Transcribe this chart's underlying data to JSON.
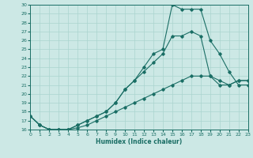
{
  "xlabel": "Humidex (Indice chaleur)",
  "background_color": "#cce8e5",
  "line_color": "#1a6e65",
  "grid_color": "#aad4cf",
  "xlim": [
    0,
    23
  ],
  "ylim": [
    16,
    30
  ],
  "xticks": [
    0,
    1,
    2,
    3,
    4,
    5,
    6,
    7,
    8,
    9,
    10,
    11,
    12,
    13,
    14,
    15,
    16,
    17,
    18,
    19,
    20,
    21,
    22,
    23
  ],
  "yticks": [
    16,
    17,
    18,
    19,
    20,
    21,
    22,
    23,
    24,
    25,
    26,
    27,
    28,
    29,
    30
  ],
  "line1_x": [
    0,
    1,
    2,
    3,
    4,
    5,
    6,
    7,
    8,
    9,
    10,
    11,
    12,
    13,
    14,
    15,
    16,
    17,
    18,
    19,
    20,
    21,
    22,
    23
  ],
  "line1_y": [
    17.5,
    16.5,
    16.0,
    16.0,
    16.0,
    16.2,
    16.5,
    17.0,
    17.5,
    18.0,
    18.5,
    19.0,
    19.5,
    20.0,
    20.5,
    21.0,
    21.5,
    22.0,
    22.0,
    22.0,
    21.5,
    21.0,
    21.5,
    21.5
  ],
  "line2_x": [
    0,
    1,
    2,
    3,
    4,
    5,
    6,
    7,
    8,
    9,
    10,
    11,
    12,
    13,
    14,
    15,
    16,
    17,
    18,
    19,
    20,
    21,
    22,
    23
  ],
  "line2_y": [
    17.5,
    16.5,
    16.0,
    16.0,
    16.0,
    16.5,
    17.0,
    17.5,
    18.0,
    19.0,
    20.5,
    21.5,
    22.5,
    23.5,
    24.5,
    26.5,
    26.5,
    27.0,
    26.5,
    22.0,
    21.0,
    21.0,
    21.5,
    21.5
  ],
  "line3_x": [
    0,
    1,
    2,
    3,
    4,
    5,
    6,
    7,
    8,
    9,
    10,
    11,
    12,
    13,
    14,
    15,
    16,
    17,
    18,
    19,
    20,
    21,
    22,
    23
  ],
  "line3_y": [
    17.5,
    16.5,
    16.0,
    16.0,
    16.0,
    16.5,
    17.0,
    17.5,
    18.0,
    19.0,
    20.5,
    21.5,
    23.0,
    24.5,
    25.0,
    30.0,
    29.5,
    29.5,
    29.5,
    26.0,
    24.5,
    22.5,
    21.0,
    21.0
  ]
}
